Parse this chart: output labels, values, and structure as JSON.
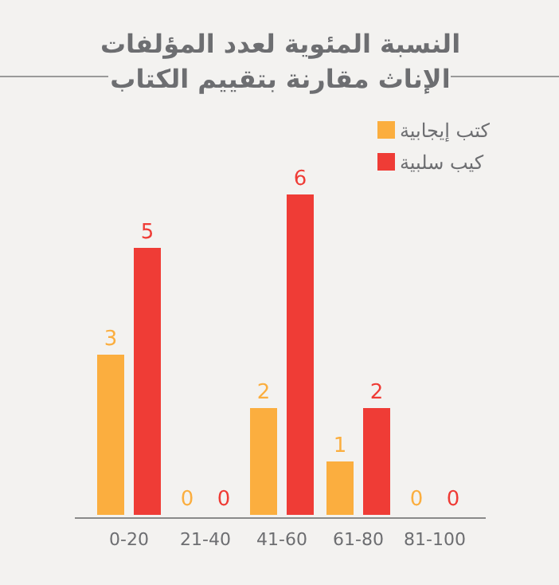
{
  "chart_data": {
    "type": "bar",
    "title": "النسبة المئوية لعدد المؤلفات الإناث مقارنة بتقييم الكتاب",
    "categories": [
      "0-20",
      "21-40",
      "41-60",
      "61-80",
      "81-100"
    ],
    "series": [
      {
        "name": "كتب إيجابية",
        "color": "#fbae3f",
        "values": [
          3,
          0,
          2,
          1,
          0
        ]
      },
      {
        "name": "كيب سلبية",
        "color": "#ef3c36",
        "values": [
          5,
          0,
          6,
          2,
          0
        ]
      }
    ],
    "data_labels": true,
    "legend": "top right"
  }
}
